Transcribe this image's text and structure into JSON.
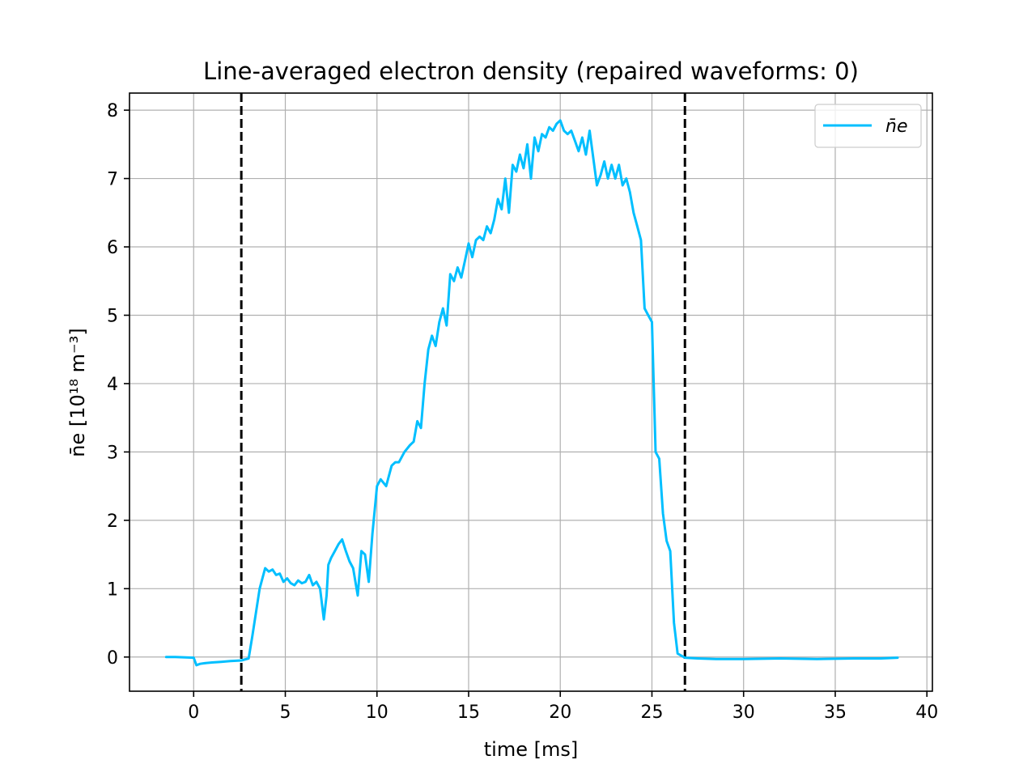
{
  "chart_data": {
    "type": "line",
    "title": "Line-averaged electron density (repaired waveforms: 0)",
    "xlabel": "time [ms]",
    "ylabel": "n̄e [10¹⁸ m⁻³]",
    "xlim": [
      -3.5,
      40.3
    ],
    "ylim": [
      -0.5,
      8.25
    ],
    "xticks": [
      0,
      5,
      10,
      15,
      20,
      25,
      30,
      35,
      40
    ],
    "yticks": [
      0,
      1,
      2,
      3,
      4,
      5,
      6,
      7,
      8
    ],
    "grid": true,
    "legend_position": "top-right",
    "vlines": [
      2.6,
      26.8
    ],
    "vline_color": "#000000",
    "series": [
      {
        "name": "n̄e",
        "color": "#00bfff",
        "x": [
          -1.5,
          -1.0,
          0.0,
          0.15,
          0.35,
          0.6,
          1.0,
          1.5,
          2.0,
          2.6,
          3.0,
          3.2,
          3.6,
          3.9,
          4.1,
          4.3,
          4.5,
          4.7,
          4.9,
          5.1,
          5.3,
          5.5,
          5.7,
          5.9,
          6.1,
          6.3,
          6.5,
          6.7,
          6.9,
          7.1,
          7.25,
          7.35,
          7.5,
          7.7,
          7.9,
          8.1,
          8.3,
          8.5,
          8.7,
          8.95,
          9.15,
          9.35,
          9.55,
          9.75,
          10.0,
          10.2,
          10.5,
          10.8,
          11.0,
          11.2,
          11.5,
          11.8,
          12.0,
          12.2,
          12.4,
          12.6,
          12.8,
          13.0,
          13.2,
          13.4,
          13.6,
          13.8,
          14.0,
          14.2,
          14.4,
          14.6,
          14.8,
          15.0,
          15.2,
          15.4,
          15.6,
          15.8,
          16.0,
          16.2,
          16.4,
          16.6,
          16.8,
          17.0,
          17.2,
          17.4,
          17.6,
          17.8,
          18.0,
          18.2,
          18.4,
          18.6,
          18.8,
          19.0,
          19.2,
          19.4,
          19.6,
          19.8,
          20.0,
          20.2,
          20.4,
          20.6,
          20.8,
          21.0,
          21.2,
          21.4,
          21.6,
          21.8,
          22.0,
          22.2,
          22.4,
          22.6,
          22.8,
          23.0,
          23.2,
          23.4,
          23.6,
          23.8,
          24.0,
          24.2,
          24.4,
          24.6,
          24.8,
          25.0,
          25.2,
          25.4,
          25.6,
          25.8,
          26.0,
          26.2,
          26.4,
          26.6,
          26.8,
          27.5,
          28.5,
          30.0,
          32.0,
          34.0,
          36.0,
          37.5,
          38.4
        ],
        "y": [
          0.0,
          0.0,
          -0.01,
          -0.12,
          -0.1,
          -0.09,
          -0.08,
          -0.07,
          -0.06,
          -0.05,
          -0.02,
          0.3,
          1.0,
          1.3,
          1.25,
          1.28,
          1.2,
          1.22,
          1.1,
          1.15,
          1.08,
          1.05,
          1.12,
          1.08,
          1.1,
          1.2,
          1.05,
          1.1,
          1.0,
          0.55,
          0.9,
          1.35,
          1.45,
          1.55,
          1.65,
          1.72,
          1.55,
          1.4,
          1.3,
          0.9,
          1.55,
          1.5,
          1.1,
          1.8,
          2.5,
          2.6,
          2.5,
          2.8,
          2.85,
          2.85,
          3.0,
          3.1,
          3.15,
          3.45,
          3.35,
          4.0,
          4.5,
          4.7,
          4.55,
          4.9,
          5.1,
          4.85,
          5.6,
          5.5,
          5.7,
          5.55,
          5.8,
          6.05,
          5.85,
          6.1,
          6.15,
          6.1,
          6.3,
          6.2,
          6.4,
          6.7,
          6.55,
          7.0,
          6.5,
          7.2,
          7.1,
          7.35,
          7.15,
          7.5,
          7.0,
          7.6,
          7.4,
          7.65,
          7.6,
          7.75,
          7.7,
          7.8,
          7.85,
          7.7,
          7.65,
          7.7,
          7.55,
          7.4,
          7.6,
          7.35,
          7.7,
          7.3,
          6.9,
          7.05,
          7.25,
          7.0,
          7.2,
          7.0,
          7.2,
          6.9,
          7.0,
          6.8,
          6.5,
          6.3,
          6.1,
          5.1,
          5.0,
          4.9,
          3.0,
          2.9,
          2.1,
          1.7,
          1.55,
          0.5,
          0.05,
          0.02,
          -0.01,
          -0.02,
          -0.03,
          -0.03,
          -0.02,
          -0.03,
          -0.02,
          -0.02,
          -0.01
        ]
      }
    ]
  }
}
